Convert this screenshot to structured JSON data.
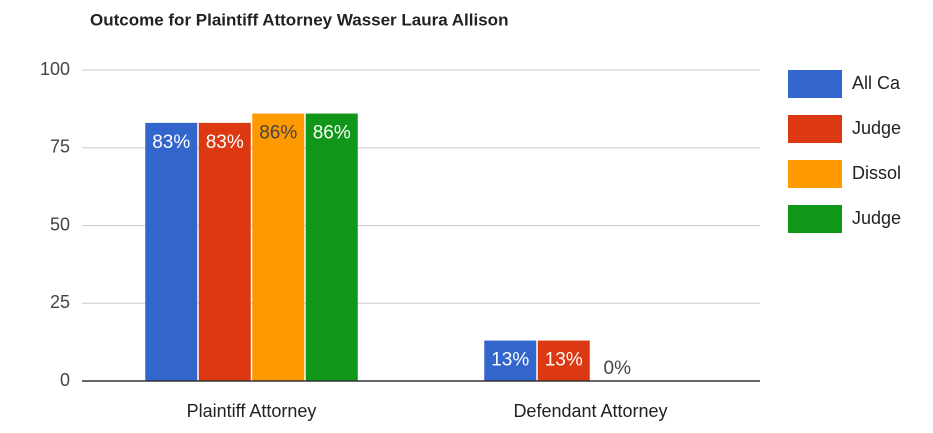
{
  "chart_data": {
    "type": "bar",
    "title": "Outcome for Plaintiff Attorney Wasser Laura Allison",
    "categories": [
      "Plaintiff Attorney",
      "Defendant Attorney"
    ],
    "series": [
      {
        "name": "All Ca",
        "color": "#3366cc",
        "values": [
          83,
          13
        ],
        "value_labels": [
          "83%",
          "13%"
        ]
      },
      {
        "name": "Judge",
        "color": "#dc3912",
        "values": [
          83,
          13
        ],
        "value_labels": [
          "83%",
          "13%"
        ]
      },
      {
        "name": "Dissol",
        "color": "#ff9900",
        "values": [
          86,
          0
        ],
        "value_labels": [
          "86%",
          "0%"
        ]
      },
      {
        "name": "Judge",
        "color": "#109618",
        "values": [
          86,
          0
        ],
        "value_labels": [
          "86%",
          null
        ]
      }
    ],
    "ylim": [
      0,
      100
    ],
    "yticks": [
      0,
      25,
      50,
      75,
      100
    ],
    "grid": true,
    "legend": "right"
  }
}
